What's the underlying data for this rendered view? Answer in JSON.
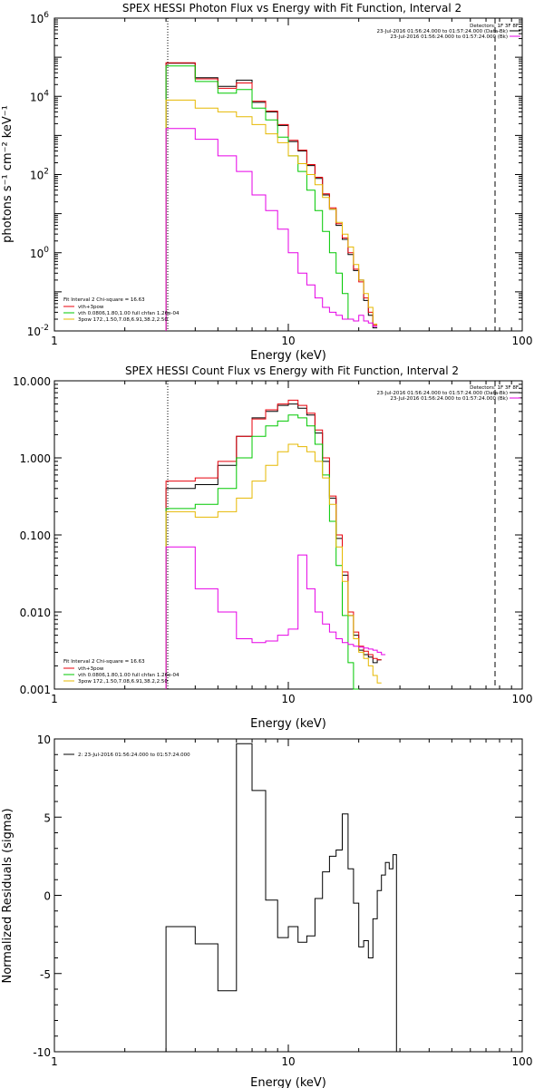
{
  "chart_data": [
    {
      "type": "line",
      "title": "SPEX HESSI Photon Flux vs Energy with Fit Function, Interval 2",
      "xlabel": "Energy (keV)",
      "ylabel": "photons s⁻¹ cm⁻² keV⁻¹",
      "xscale": "log",
      "yscale": "log",
      "xlim": [
        1,
        100
      ],
      "ylim": [
        0.01,
        1000000
      ],
      "grid": false,
      "y_ticks": [
        {
          "value": 0.01,
          "base": "10",
          "exp": "-2"
        },
        {
          "value": 1,
          "base": "10",
          "exp": "0"
        },
        {
          "value": 100,
          "base": "10",
          "exp": "2"
        },
        {
          "value": 10000,
          "base": "10",
          "exp": "4"
        },
        {
          "value": 1000000,
          "base": "10",
          "exp": "6"
        }
      ],
      "x_ticks": [
        {
          "value": 1,
          "label": "1"
        },
        {
          "value": 10,
          "label": "10"
        },
        {
          "value": 100,
          "label": "100"
        }
      ],
      "legend_placement": "bottom-left",
      "fit_legend": [
        "Fit Interval 2   Chi-square = 16.63",
        "vth+3pow",
        "vth 0.0806,1.80,1.00  full chfan 1.26e-04",
        "3pow 172.,1.50,7.08,6.91,38.2,2.50"
      ],
      "header_legend": [
        "Detectors: 1F 3F 8F",
        "23-Jul-2016 01:56:24.000 to 01:57:24.000 (Data-Bk)",
        "23-Jul-2016 01:56:24.000 to 01:57:24.000 (Bk)"
      ],
      "vlines": [
        {
          "x": 3.0,
          "style": "dotted"
        },
        {
          "x": 71,
          "style": "dashed"
        }
      ],
      "bin_edges": [
        3.0,
        4.0,
        5.0,
        6.0,
        7.0,
        8.0,
        9.0,
        10.0,
        11.0,
        12.0,
        13.0,
        14.0,
        15.0,
        16.0,
        17.0,
        18.0,
        19.0,
        20.0,
        21.0,
        22.0,
        23.0,
        24.0,
        25.0,
        26.0,
        27.0,
        28.0,
        29.0,
        30.0,
        31.0,
        32.0,
        33.0,
        34.0,
        35.0,
        36.0,
        37.0
      ],
      "series": [
        {
          "name": "",
          "color": "#000000",
          "values": [
            70000,
            30000,
            18000,
            26000,
            7000,
            4000,
            1800,
            700,
            400,
            170,
            80,
            30,
            13,
            5,
            2.2,
            0.9,
            0.35,
            0.2,
            0.06,
            0.025,
            0.012
          ]
        },
        {
          "name": "",
          "color": "#e8000b",
          "values": [
            72000,
            28000,
            16000,
            22000,
            7500,
            4200,
            1900,
            750,
            420,
            180,
            85,
            32,
            14,
            5.5,
            2.4,
            1.0,
            0.38,
            0.18,
            0.07,
            0.03,
            0.014
          ]
        },
        {
          "name": "",
          "color": "#00c800",
          "values": [
            60000,
            24000,
            12000,
            15000,
            5000,
            2500,
            900,
            300,
            120,
            40,
            12,
            3.5,
            1.0,
            0.3,
            0.09,
            0.02
          ]
        },
        {
          "name": "",
          "color": "#e6b800",
          "values": [
            8000,
            5000,
            4000,
            3000,
            1900,
            1100,
            650,
            300,
            190,
            100,
            55,
            26,
            13,
            6.0,
            3.0,
            1.4,
            0.5,
            0.2,
            0.09,
            0.04,
            0.015
          ]
        },
        {
          "name": "",
          "color": "#e600e6",
          "values": [
            1500,
            800,
            300,
            120,
            30,
            12,
            4,
            1.0,
            0.3,
            0.15,
            0.07,
            0.04,
            0.03,
            0.025,
            0.02,
            0.02,
            0.018,
            0.025,
            0.018,
            0.016,
            0.013
          ]
        }
      ]
    },
    {
      "type": "line",
      "title": "SPEX HESSI Count Flux vs Energy with Fit Function, Interval 2",
      "xlabel": "Energy (keV)",
      "ylabel": "",
      "xscale": "log",
      "yscale": "log",
      "xlim": [
        1,
        100
      ],
      "ylim": [
        0.001,
        10
      ],
      "grid": false,
      "y_ticks": [
        {
          "value": 0.001,
          "label": "0.001"
        },
        {
          "value": 0.01,
          "label": "0.010"
        },
        {
          "value": 0.1,
          "label": "0.100"
        },
        {
          "value": 1,
          "label": "1.000"
        },
        {
          "value": 10,
          "label": "10.000"
        }
      ],
      "x_ticks": [
        {
          "value": 1,
          "label": "1"
        },
        {
          "value": 10,
          "label": "10"
        },
        {
          "value": 100,
          "label": "100"
        }
      ],
      "legend_placement": "bottom-left",
      "fit_legend": [
        "Fit Interval 2   Chi-square = 16.63",
        "vth+3pow",
        "vth 0.0806,1.80,1.00  full chfan 1.26e-04",
        "3pow 172.,1.50,7.08,6.91,38.2,2.50"
      ],
      "header_legend": [
        "Detectors: 1F 3F 8F",
        "23-Jul-2016 01:56:24.000 to 01:57:24.000 (Data-Bk)",
        "23-Jul-2016 01:56:24.000 to 01:57:24.000 (Bk)"
      ],
      "vlines": [
        {
          "x": 3.0,
          "style": "dotted"
        },
        {
          "x": 71,
          "style": "dashed"
        }
      ],
      "bin_edges": [
        3.0,
        4.0,
        5.0,
        6.0,
        7.0,
        8.0,
        9.0,
        10.0,
        11.0,
        12.0,
        13.0,
        14.0,
        15.0,
        16.0,
        17.0,
        18.0,
        19.0,
        20.0,
        21.0,
        22.0,
        23.0,
        24.0,
        25.0,
        26.0,
        27.0,
        28.0,
        29.0,
        30.0,
        31.0,
        32.0,
        33.0,
        34.0,
        35.0,
        36.0,
        37.0
      ],
      "series": [
        {
          "name": "",
          "color": "#000000",
          "values": [
            0.4,
            0.45,
            0.8,
            1.9,
            3.3,
            4.0,
            4.8,
            5.0,
            4.4,
            3.6,
            2.1,
            0.9,
            0.3,
            0.09,
            0.03,
            0.009,
            0.005,
            0.0032,
            0.0028,
            0.0026,
            0.0022,
            0.0024
          ]
        },
        {
          "name": "",
          "color": "#e8000b",
          "values": [
            0.5,
            0.55,
            0.9,
            1.9,
            3.2,
            4.2,
            5.0,
            5.6,
            4.8,
            3.8,
            2.3,
            1.0,
            0.32,
            0.1,
            0.033,
            0.01,
            0.0055,
            0.0036,
            0.0031,
            0.0028,
            0.0025,
            0.0024
          ]
        },
        {
          "name": "",
          "color": "#00c800",
          "values": [
            0.22,
            0.25,
            0.4,
            1.0,
            1.9,
            2.6,
            3.0,
            3.6,
            3.3,
            2.6,
            1.5,
            0.6,
            0.15,
            0.04,
            0.009,
            0.0022,
            0.001
          ]
        },
        {
          "name": "",
          "color": "#e6b800",
          "values": [
            0.2,
            0.17,
            0.2,
            0.3,
            0.5,
            0.8,
            1.2,
            1.5,
            1.4,
            1.2,
            0.9,
            0.55,
            0.25,
            0.07,
            0.025,
            0.009,
            0.0045,
            0.003,
            0.0025,
            0.002,
            0.0015,
            0.0012
          ]
        },
        {
          "name": "",
          "color": "#e600e6",
          "values": [
            0.07,
            0.02,
            0.01,
            0.0045,
            0.004,
            0.0042,
            0.005,
            0.006,
            0.055,
            0.02,
            0.01,
            0.007,
            0.0055,
            0.0045,
            0.004,
            0.0038,
            0.0036,
            0.0035,
            0.0034,
            0.0033,
            0.0032,
            0.003,
            0.0028
          ]
        }
      ]
    },
    {
      "type": "line",
      "title": "",
      "xlabel": "Energy (keV)",
      "ylabel": "Normalized Residuals (sigma)",
      "xscale": "log",
      "yscale": "linear",
      "xlim": [
        1,
        100
      ],
      "ylim": [
        -10,
        10
      ],
      "grid": false,
      "y_ticks": [
        {
          "value": -10,
          "label": "-10"
        },
        {
          "value": -5,
          "label": "-5"
        },
        {
          "value": 0,
          "label": "0"
        },
        {
          "value": 5,
          "label": "5"
        },
        {
          "value": 10,
          "label": "10"
        }
      ],
      "x_ticks": [
        {
          "value": 1,
          "label": "1"
        },
        {
          "value": 10,
          "label": "10"
        },
        {
          "value": 100,
          "label": "100"
        }
      ],
      "legend_placement": "top-left",
      "legend": [
        "2: 23-Jul-2016 01:56:24.000 to 01:57:24.000"
      ],
      "bin_edges": [
        3.0,
        4.0,
        5.0,
        6.0,
        7.0,
        8.0,
        9.0,
        10.0,
        11.0,
        12.0,
        13.0,
        14.0,
        15.0,
        16.0,
        17.0,
        18.0,
        19.0,
        20.0,
        21.0,
        22.0,
        23.0,
        24.0,
        25.0,
        26.0,
        27.0,
        28.0,
        29.0,
        30.0,
        31.0,
        32.0,
        33.0,
        34.0,
        35.0,
        36.0,
        37.0
      ],
      "series": [
        {
          "name": "2: 23-Jul-2016 01:56:24.000 to 01:57:24.000",
          "color": "#000000",
          "values": [
            -2.0,
            -3.1,
            -6.1,
            9.7,
            6.7,
            -0.3,
            -2.7,
            -2.0,
            -3.0,
            -2.6,
            -0.2,
            1.5,
            2.5,
            2.9,
            5.2,
            1.7,
            -0.5,
            -3.3,
            -2.9,
            -4.0,
            -1.5,
            0.3,
            1.3,
            2.1,
            1.7,
            2.6
          ]
        }
      ]
    }
  ]
}
